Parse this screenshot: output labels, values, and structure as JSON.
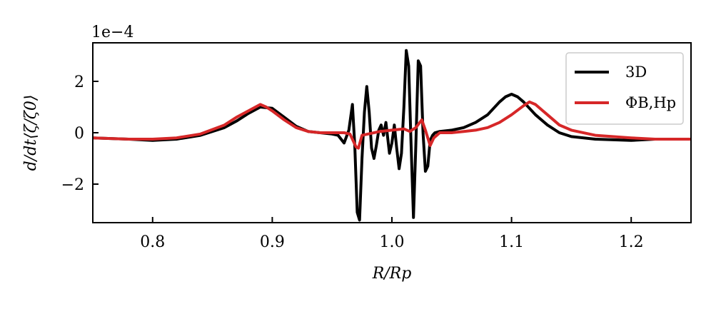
{
  "chart_data": {
    "type": "line",
    "title": "",
    "xlabel": "R/Rp",
    "ylabel": "d/dt⟨ζ/ζ0⟩",
    "offset_text": "1e−4",
    "xlim": [
      0.75,
      1.25
    ],
    "ylim": [
      -3.5,
      3.5
    ],
    "x_ticks": [
      0.8,
      0.9,
      1.0,
      1.1,
      1.2
    ],
    "x_tick_labels": [
      "0.8",
      "0.9",
      "1.0",
      "1.1",
      "1.2"
    ],
    "y_ticks": [
      -2,
      0,
      2
    ],
    "y_tick_labels": [
      "−2",
      "0",
      "2"
    ],
    "grid": false,
    "legend_position": "top-right",
    "series": [
      {
        "name": "3D",
        "color": "#000000",
        "x": [
          0.75,
          0.78,
          0.8,
          0.82,
          0.84,
          0.86,
          0.87,
          0.88,
          0.89,
          0.9,
          0.91,
          0.92,
          0.93,
          0.94,
          0.95,
          0.955,
          0.96,
          0.964,
          0.967,
          0.969,
          0.971,
          0.973,
          0.975,
          0.977,
          0.979,
          0.981,
          0.983,
          0.985,
          0.987,
          0.989,
          0.991,
          0.993,
          0.995,
          0.998,
          1.0,
          1.002,
          1.004,
          1.006,
          1.008,
          1.01,
          1.012,
          1.014,
          1.016,
          1.018,
          1.02,
          1.022,
          1.024,
          1.026,
          1.028,
          1.03,
          1.032,
          1.034,
          1.036,
          1.04,
          1.05,
          1.06,
          1.07,
          1.08,
          1.09,
          1.095,
          1.1,
          1.105,
          1.11,
          1.12,
          1.13,
          1.14,
          1.15,
          1.17,
          1.2,
          1.22,
          1.25
        ],
        "y": [
          -0.2,
          -0.25,
          -0.3,
          -0.25,
          -0.1,
          0.2,
          0.45,
          0.75,
          1.0,
          0.95,
          0.6,
          0.25,
          0.05,
          0.0,
          -0.05,
          -0.1,
          -0.4,
          0.1,
          1.1,
          -0.5,
          -3.1,
          -3.4,
          -1.0,
          0.8,
          1.8,
          0.8,
          -0.6,
          -1.0,
          -0.5,
          0.1,
          0.3,
          -0.1,
          0.4,
          -0.8,
          -0.4,
          0.3,
          -0.6,
          -1.4,
          -0.8,
          1.0,
          3.2,
          2.6,
          -0.4,
          -3.3,
          -0.5,
          2.8,
          2.6,
          0.0,
          -1.5,
          -1.3,
          -0.3,
          -0.1,
          0.0,
          0.05,
          0.1,
          0.2,
          0.4,
          0.7,
          1.2,
          1.4,
          1.5,
          1.4,
          1.2,
          0.7,
          0.3,
          0.0,
          -0.15,
          -0.25,
          -0.3,
          -0.25,
          -0.25
        ]
      },
      {
        "name": "ΦB,Hp",
        "color": "#d62728",
        "x": [
          0.75,
          0.78,
          0.8,
          0.82,
          0.84,
          0.86,
          0.87,
          0.88,
          0.89,
          0.895,
          0.9,
          0.91,
          0.92,
          0.93,
          0.94,
          0.95,
          0.96,
          0.965,
          0.97,
          0.972,
          0.975,
          0.98,
          0.99,
          1.0,
          1.01,
          1.015,
          1.02,
          1.025,
          1.028,
          1.032,
          1.035,
          1.04,
          1.05,
          1.06,
          1.07,
          1.08,
          1.09,
          1.1,
          1.11,
          1.115,
          1.12,
          1.13,
          1.14,
          1.15,
          1.17,
          1.2,
          1.22,
          1.25
        ],
        "y": [
          -0.2,
          -0.25,
          -0.25,
          -0.2,
          -0.05,
          0.3,
          0.6,
          0.85,
          1.1,
          1.0,
          0.85,
          0.5,
          0.2,
          0.05,
          0.0,
          0.0,
          0.0,
          -0.05,
          -0.55,
          -0.6,
          -0.1,
          -0.05,
          0.05,
          0.1,
          0.15,
          0.05,
          0.2,
          0.5,
          0.1,
          -0.5,
          -0.2,
          0.0,
          0.0,
          0.05,
          0.1,
          0.2,
          0.4,
          0.7,
          1.05,
          1.2,
          1.1,
          0.7,
          0.3,
          0.1,
          -0.1,
          -0.2,
          -0.25,
          -0.25
        ]
      }
    ]
  }
}
